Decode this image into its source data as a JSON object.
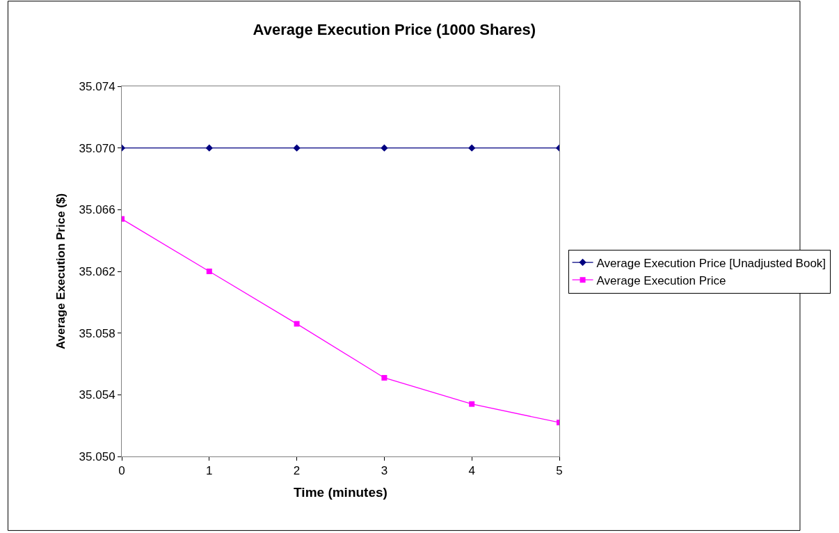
{
  "chart_data": {
    "type": "line",
    "title": "Average Execution Price (1000 Shares)",
    "xlabel": "Time (minutes)",
    "ylabel": "Average Execution Price ($)",
    "x": [
      0,
      1,
      2,
      3,
      4,
      5
    ],
    "series": [
      {
        "name": "Average Execution Price [Unadjusted Book]",
        "color": "#000080",
        "marker": "diamond",
        "values": [
          35.07,
          35.07,
          35.07,
          35.07,
          35.07,
          35.07
        ]
      },
      {
        "name": "Average Execution Price",
        "color": "#ff00ff",
        "marker": "square",
        "values": [
          35.0654,
          35.062,
          35.0586,
          35.0551,
          35.0534,
          35.0522
        ]
      }
    ],
    "xlim": [
      0,
      5
    ],
    "xticks": [
      0,
      1,
      2,
      3,
      4,
      5
    ],
    "ylim": [
      35.05,
      35.074
    ],
    "yticks": [
      {
        "value": 35.05,
        "label": "35.050"
      },
      {
        "value": 35.054,
        "label": "35.054"
      },
      {
        "value": 35.058,
        "label": "35.058"
      },
      {
        "value": 35.062,
        "label": "35.062"
      },
      {
        "value": 35.066,
        "label": "35.066"
      },
      {
        "value": 35.07,
        "label": "35.070"
      },
      {
        "value": 35.074,
        "label": "35.074"
      }
    ],
    "legend": "right",
    "line_style": "solid"
  }
}
